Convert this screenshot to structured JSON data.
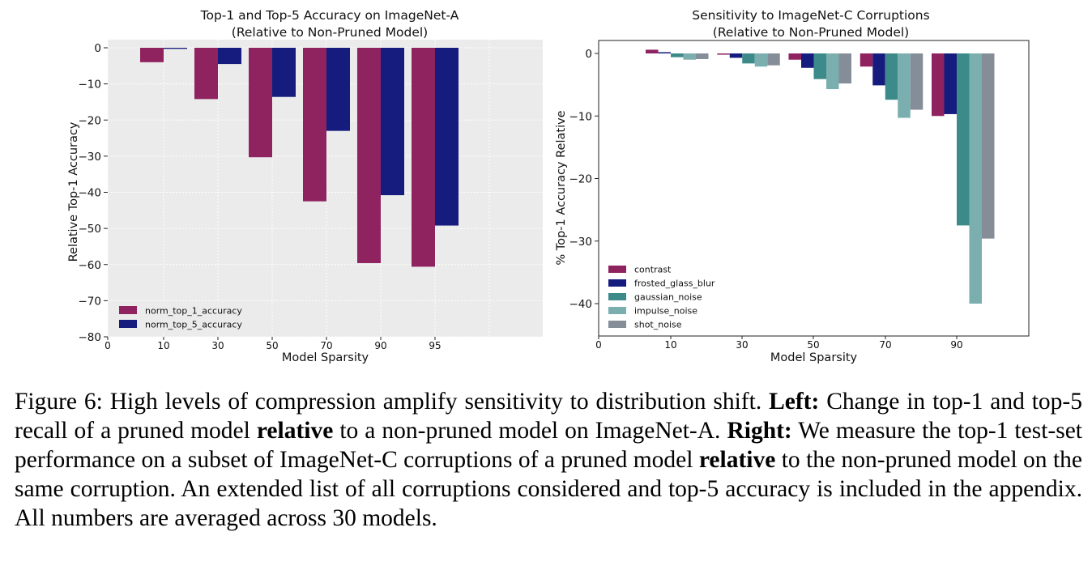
{
  "chart_data": [
    {
      "type": "bar",
      "title": "Top-1 and Top-5 Accuracy on ImageNet-A",
      "subtitle": "(Relative to Non-Pruned Model)",
      "xlabel": "Model Sparsity",
      "ylabel": "Relative Top-1 Accuracy",
      "ylim": [
        -80,
        2
      ],
      "yticks": [
        0,
        -10,
        -20,
        -30,
        -40,
        -50,
        -60,
        -70,
        -80
      ],
      "xticks": [
        "0",
        "10",
        "30",
        "50",
        "70",
        "90",
        "95"
      ],
      "categories": [
        "10",
        "30",
        "50",
        "70",
        "90",
        "95"
      ],
      "background": "#ebebeb",
      "grid": true,
      "legend_position": "lower-left",
      "series": [
        {
          "name": "norm_top_1_accuracy",
          "color": "#8f2360",
          "values": [
            -4,
            -14.2,
            -30.3,
            -42.5,
            -59.6,
            -60.6
          ]
        },
        {
          "name": "norm_top_5_accuracy",
          "color": "#161c7e",
          "values": [
            -0.3,
            -4.5,
            -13.6,
            -23,
            -40.8,
            -49.2
          ]
        }
      ]
    },
    {
      "type": "bar",
      "title": "Sensitivity to ImageNet-C Corruptions",
      "subtitle": "(Relative to Non-Pruned Model)",
      "xlabel": "Model Sparsity",
      "ylabel": "% Top-1 Accuracy Relative",
      "ylim": [
        -45,
        2
      ],
      "yticks": [
        0,
        -10,
        -20,
        -30,
        -40
      ],
      "xticks": [
        "0",
        "10",
        "30",
        "50",
        "70",
        "90"
      ],
      "categories": [
        "10",
        "30",
        "50",
        "70",
        "90"
      ],
      "background": "#ffffff",
      "grid": false,
      "legend_position": "lower-left",
      "series": [
        {
          "name": "contrast",
          "color": "#8f2360",
          "values": [
            0.6,
            -0.2,
            -1,
            -2.1,
            -10
          ]
        },
        {
          "name": "frosted_glass_blur",
          "color": "#161c7e",
          "values": [
            0.2,
            -0.7,
            -2.3,
            -5.1,
            -9.7
          ]
        },
        {
          "name": "gaussian_noise",
          "color": "#3d8a8a",
          "values": [
            -0.6,
            -1.6,
            -4.1,
            -7.4,
            -27.5
          ]
        },
        {
          "name": "impulse_noise",
          "color": "#7aaeaf",
          "values": [
            -1,
            -2.1,
            -5.7,
            -10.3,
            -40
          ]
        },
        {
          "name": "shot_noise",
          "color": "#858d99",
          "values": [
            -0.9,
            -1.9,
            -4.8,
            -9,
            -29.6
          ]
        }
      ]
    }
  ],
  "caption": {
    "figure_label": "Figure 6:",
    "intro": " High levels of compression amplify sensitivity to distribution shift. ",
    "left_label": "Left:",
    "left_text_1": " Change in top-1 and top-5 recall of a pruned model ",
    "left_bold": "relative",
    "left_text_2": " to a non-pruned model on ImageNet-A. ",
    "right_label": "Right:",
    "right_text_1": " We measure the top-1 test-set performance on a subset of ImageNet-C corruptions of a pruned model ",
    "right_bold": "relative",
    "right_text_2": " to the non-pruned model on the same corruption. An extended list of all corruptions considered and top-5 accuracy is included in the appendix.  All numbers are averaged across 30 models."
  }
}
